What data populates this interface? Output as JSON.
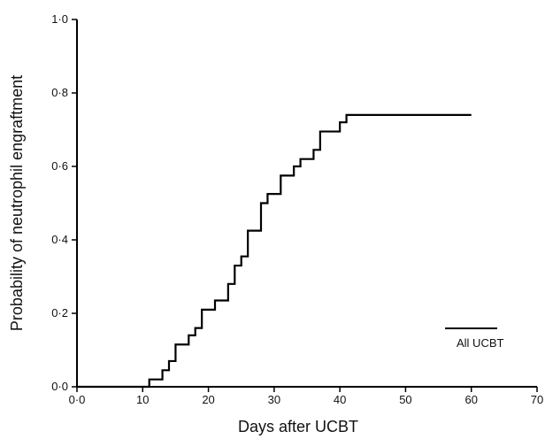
{
  "chart_data": {
    "type": "line",
    "title": "",
    "xlabel": "Days after UCBT",
    "ylabel": "Probability of neutrophil engraftment",
    "xlim": [
      0,
      70
    ],
    "ylim": [
      0,
      1
    ],
    "grid": false,
    "legend_position": "bottom-right",
    "x_ticks": [
      0,
      10,
      20,
      30,
      40,
      50,
      60,
      70
    ],
    "x_tick_labels": [
      "0·0",
      "10",
      "20",
      "30",
      "40",
      "50",
      "60",
      "70"
    ],
    "y_ticks": [
      0,
      0.2,
      0.4,
      0.6,
      0.8,
      1.0
    ],
    "y_tick_labels": [
      "0·0",
      "0·2",
      "0·4",
      "0·6",
      "0·8",
      "1·0"
    ],
    "series": [
      {
        "name": "All UCBT",
        "step": true,
        "x": [
          0,
          11,
          13,
          14,
          15,
          17,
          18,
          19,
          21,
          23,
          24,
          25,
          26,
          28,
          29,
          31,
          33,
          34,
          36,
          37,
          40,
          41,
          60
        ],
        "y": [
          0,
          0.02,
          0.045,
          0.07,
          0.115,
          0.14,
          0.16,
          0.21,
          0.235,
          0.28,
          0.33,
          0.355,
          0.425,
          0.5,
          0.525,
          0.575,
          0.6,
          0.62,
          0.645,
          0.695,
          0.72,
          0.74,
          0.74
        ]
      }
    ]
  }
}
